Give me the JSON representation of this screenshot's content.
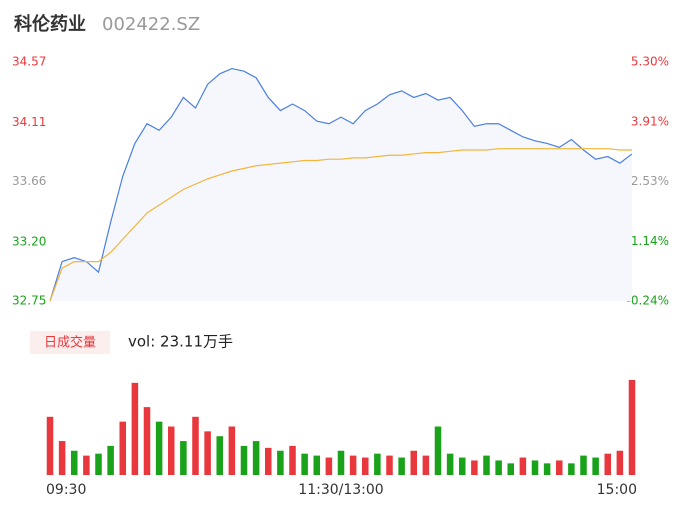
{
  "header": {
    "name": "科伦药业",
    "code": "002422.SZ"
  },
  "chart_data": {
    "type": "intraday",
    "xlim": [
      0,
      240
    ],
    "xticks": [
      {
        "value": 0,
        "label": "09:30"
      },
      {
        "value": 120,
        "label": "11:30/13:00"
      },
      {
        "value": 240,
        "label": "15:00"
      }
    ],
    "ylim": [
      32.75,
      34.57
    ],
    "yticks": [
      34.57,
      34.11,
      33.66,
      {
        "value": 33.2,
        "label": "33.20"
      },
      32.75
    ],
    "y2lim": [
      -0.24,
      5.3
    ],
    "y2ticks": [
      {
        "value": 5.3,
        "label": "5.30%"
      },
      {
        "value": 3.91,
        "label": "3.91%"
      },
      {
        "value": 2.53,
        "label": "2.53%"
      },
      {
        "value": 1.14,
        "label": "1.14%"
      },
      {
        "value": -0.24,
        "label": "-0.24%"
      }
    ],
    "x": [
      0,
      5,
      10,
      15,
      20,
      25,
      30,
      35,
      40,
      45,
      50,
      55,
      60,
      65,
      70,
      75,
      80,
      85,
      90,
      95,
      100,
      105,
      110,
      115,
      120,
      125,
      130,
      135,
      140,
      145,
      150,
      155,
      160,
      165,
      170,
      175,
      180,
      185,
      190,
      195,
      200,
      205,
      210,
      215,
      220,
      225,
      230,
      235,
      240
    ],
    "series": [
      {
        "color": "#4a7fe0",
        "values": [
          32.75,
          33.05,
          33.08,
          33.05,
          32.97,
          33.35,
          33.7,
          33.95,
          34.1,
          34.05,
          34.15,
          34.3,
          34.22,
          34.4,
          34.48,
          34.52,
          34.5,
          34.45,
          34.3,
          34.2,
          34.25,
          34.2,
          34.12,
          34.1,
          34.15,
          34.1,
          34.2,
          34.25,
          34.32,
          34.35,
          34.3,
          34.33,
          34.28,
          34.3,
          34.2,
          34.08,
          34.1,
          34.1,
          34.05,
          34.0,
          33.97,
          33.95,
          33.92,
          33.98,
          33.9,
          33.83,
          33.85,
          33.8,
          33.87
        ]
      },
      {
        "color": "#f3b53a",
        "values": [
          32.75,
          33.0,
          33.05,
          33.05,
          33.05,
          33.12,
          33.22,
          33.32,
          33.42,
          33.48,
          33.54,
          33.6,
          33.64,
          33.68,
          33.71,
          33.74,
          33.76,
          33.78,
          33.79,
          33.8,
          33.81,
          33.82,
          33.82,
          33.83,
          33.83,
          33.84,
          33.84,
          33.85,
          33.86,
          33.86,
          33.87,
          33.88,
          33.88,
          33.89,
          33.9,
          33.9,
          33.9,
          33.91,
          33.91,
          33.91,
          33.91,
          33.91,
          33.91,
          33.91,
          33.91,
          33.91,
          33.91,
          33.9,
          33.9
        ]
      }
    ],
    "volume_label": "日成交量",
    "volume_text": "vol: 23.11万手",
    "volume_ylim": [
      0,
      100
    ],
    "volume": [
      60,
      35,
      25,
      20,
      22,
      30,
      55,
      95,
      70,
      55,
      50,
      35,
      60,
      45,
      40,
      50,
      30,
      35,
      28,
      25,
      30,
      22,
      20,
      18,
      25,
      20,
      18,
      22,
      20,
      18,
      25,
      20,
      50,
      22,
      18,
      15,
      20,
      15,
      12,
      18,
      15,
      12,
      15,
      12,
      20,
      18,
      22,
      25,
      98
    ],
    "volume_colors": [
      "#e8383d",
      "#e8383d",
      "#1aa31a",
      "#e8383d",
      "#1aa31a",
      "#1aa31a",
      "#e8383d",
      "#e8383d",
      "#e8383d",
      "#1aa31a",
      "#e8383d",
      "#1aa31a",
      "#e8383d",
      "#e8383d",
      "#1aa31a",
      "#e8383d",
      "#1aa31a",
      "#1aa31a",
      "#e8383d",
      "#1aa31a",
      "#e8383d",
      "#1aa31a",
      "#1aa31a",
      "#e8383d",
      "#1aa31a",
      "#e8383d",
      "#e8383d",
      "#1aa31a",
      "#e8383d",
      "#1aa31a",
      "#e8383d",
      "#e8383d",
      "#1aa31a",
      "#1aa31a",
      "#1aa31a",
      "#e8383d",
      "#1aa31a",
      "#1aa31a",
      "#1aa31a",
      "#e8383d",
      "#1aa31a",
      "#1aa31a",
      "#e8383d",
      "#1aa31a",
      "#1aa31a",
      "#1aa31a",
      "#e8383d",
      "#e8383d",
      "#e8383d"
    ]
  }
}
